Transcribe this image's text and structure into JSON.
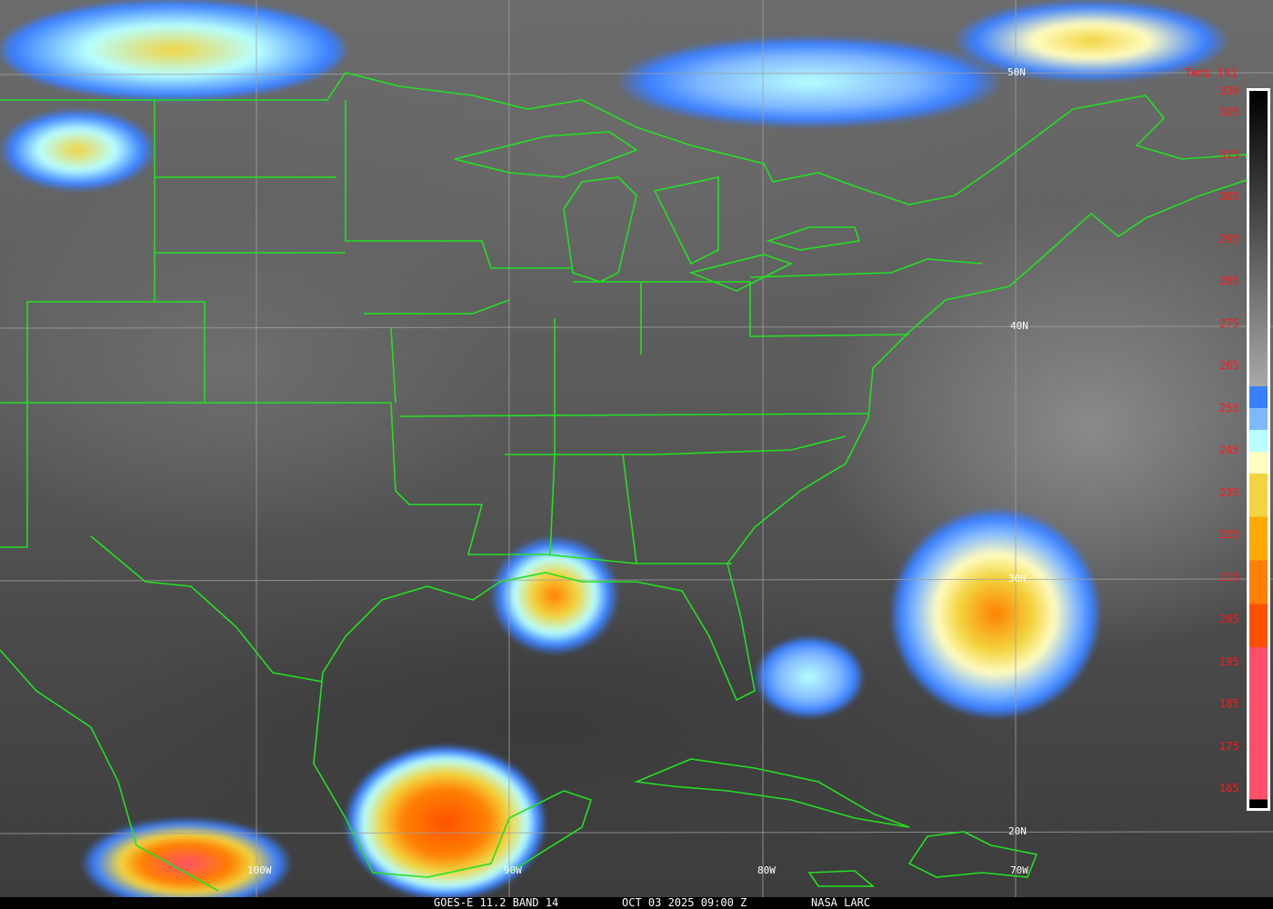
{
  "image": {
    "caption": {
      "satellite": "GOES-E 11.2 BAND 14",
      "datetime": "OCT 03 2025 09:00 Z",
      "source": "NASA LARC"
    },
    "lat_labels": [
      "50N",
      "40N",
      "30N",
      "20N"
    ],
    "lon_labels": [
      "100W",
      "90W",
      "80W",
      "70W"
    ],
    "colorbar": {
      "title": "Temp [K]",
      "ticks": [
        "330",
        "325",
        "315",
        "305",
        "295",
        "285",
        "275",
        "265",
        "255",
        "245",
        "235",
        "225",
        "215",
        "205",
        "195",
        "185",
        "175",
        "165"
      ],
      "range_k": [
        165,
        330
      ],
      "colors": {
        "warm_gradient_top": "#000000",
        "warm_gradient_bottom": "#a8a8a8",
        "band_257_262": "#3a7fff",
        "band_252_257": "#80b8ff",
        "band_247_252": "#b8ffff",
        "band_242_247": "#fffcc0",
        "band_232_242": "#f2d440",
        "band_222_232": "#ffaa00",
        "band_212_222": "#ff8000",
        "band_202_212": "#ff5000",
        "band_167_202": "#ff5068",
        "band_165_167": "#000000"
      }
    },
    "border_color": "#22e022",
    "label_color": "#ff1818"
  }
}
